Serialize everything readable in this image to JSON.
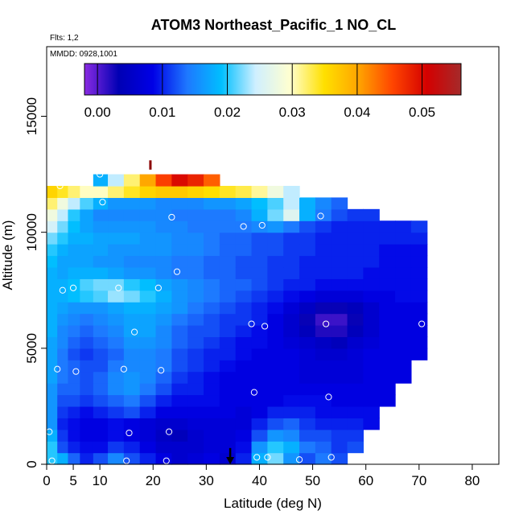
{
  "chart_data": {
    "type": "heatmap",
    "title": "ATOM3 Northeast_Pacific_1 NO_CL",
    "subtitle_flights": "Flts: 1,2",
    "subtitle_dates": "MMDD: 0928,1001",
    "xlabel": "Latitude (deg N)",
    "ylabel": "Altitude (m)",
    "xlim": [
      0,
      85
    ],
    "ylim": [
      0,
      18000
    ],
    "x_ticks": [
      "0",
      "5",
      "10",
      "20",
      "30",
      "40",
      "50",
      "60",
      "70",
      "80"
    ],
    "x_tick_values": [
      0,
      5,
      10,
      20,
      30,
      40,
      50,
      60,
      70,
      80
    ],
    "y_ticks": [
      "0",
      "5000",
      "10000",
      "15000"
    ],
    "y_tick_values": [
      0,
      5000,
      10000,
      15000
    ],
    "colorbar": {
      "range": [
        -0.002,
        0.056
      ],
      "tick_labels": [
        "0.00",
        "0.01",
        "0.02",
        "0.03",
        "0.04",
        "0.05"
      ],
      "tick_values": [
        0.0,
        0.01,
        0.02,
        0.03,
        0.04,
        0.05
      ],
      "colors": [
        "#8a2be2",
        "#0000b4",
        "#0000e6",
        "#1e78ff",
        "#00bfff",
        "#cfefff",
        "#ffffd0",
        "#ffe000",
        "#ffa500",
        "#ff4500",
        "#d40000",
        "#a52a2a"
      ]
    },
    "field": {
      "lat_centers": [
        1,
        3,
        5,
        7.5,
        10,
        13,
        16,
        19,
        22,
        25,
        28,
        31,
        34,
        37,
        40,
        43,
        46,
        49,
        52,
        55,
        58,
        61,
        64,
        67,
        70
      ],
      "alt_centers": [
        250,
        750,
        1250,
        1750,
        2250,
        2750,
        3250,
        3750,
        4250,
        4750,
        5250,
        5750,
        6250,
        6750,
        7250,
        7750,
        8250,
        8750,
        9250,
        9750,
        10250,
        10750,
        11250,
        11750,
        12250
      ],
      "values": [
        [
          0.02,
          0.018,
          0.013,
          0.01,
          0.012,
          0.015,
          0.012,
          0.01,
          0.008,
          0.006,
          0.007,
          0.008,
          0.006,
          0.01,
          0.018,
          0.022,
          0.016,
          0.012,
          0.014,
          0.012,
          null,
          null,
          null,
          null,
          null
        ],
        [
          0.02,
          0.012,
          0.01,
          0.009,
          0.009,
          0.011,
          0.01,
          0.008,
          0.006,
          0.006,
          0.006,
          0.007,
          0.007,
          0.009,
          0.016,
          0.02,
          0.018,
          0.014,
          0.013,
          0.011,
          0.012,
          null,
          null,
          null,
          null
        ],
        [
          0.018,
          0.011,
          0.009,
          0.008,
          0.008,
          0.009,
          0.008,
          0.007,
          0.005,
          0.004,
          0.006,
          0.007,
          0.007,
          0.008,
          0.012,
          0.016,
          0.015,
          0.012,
          0.012,
          0.011,
          0.011,
          null,
          null,
          null,
          null
        ],
        [
          0.016,
          0.01,
          0.009,
          0.008,
          0.008,
          0.009,
          0.008,
          0.007,
          0.006,
          0.006,
          0.007,
          0.007,
          0.007,
          0.007,
          0.01,
          0.012,
          0.013,
          0.011,
          0.01,
          0.01,
          0.01,
          0.009,
          null,
          null,
          null
        ],
        [
          0.016,
          0.011,
          0.01,
          0.009,
          0.01,
          0.011,
          0.012,
          0.01,
          0.008,
          0.008,
          0.008,
          0.008,
          0.008,
          0.007,
          0.008,
          0.01,
          0.01,
          0.01,
          0.009,
          0.009,
          0.009,
          0.009,
          null,
          null,
          null
        ],
        [
          0.016,
          0.012,
          0.012,
          0.011,
          0.012,
          0.013,
          0.014,
          0.012,
          0.01,
          0.009,
          0.009,
          0.009,
          0.008,
          0.008,
          0.008,
          0.008,
          0.009,
          0.009,
          0.009,
          0.008,
          0.008,
          0.008,
          0.008,
          null,
          null
        ],
        [
          0.016,
          0.013,
          0.013,
          0.012,
          0.013,
          0.015,
          0.016,
          0.014,
          0.012,
          0.01,
          0.01,
          0.009,
          0.008,
          0.008,
          0.008,
          0.008,
          0.008,
          0.008,
          0.008,
          0.008,
          0.008,
          0.008,
          0.008,
          null,
          null
        ],
        [
          0.017,
          0.014,
          0.013,
          0.012,
          0.013,
          0.015,
          0.016,
          0.015,
          0.013,
          0.011,
          0.01,
          0.009,
          0.008,
          0.008,
          0.008,
          0.008,
          0.008,
          0.007,
          0.007,
          0.007,
          0.007,
          0.008,
          0.008,
          0.008,
          null
        ],
        [
          0.017,
          0.014,
          0.013,
          0.012,
          0.012,
          0.014,
          0.015,
          0.015,
          0.014,
          0.012,
          0.011,
          0.01,
          0.009,
          0.008,
          0.008,
          0.008,
          0.008,
          0.007,
          0.007,
          0.007,
          0.007,
          0.008,
          0.008,
          0.008,
          null
        ],
        [
          0.017,
          0.014,
          0.012,
          0.011,
          0.012,
          0.013,
          0.015,
          0.015,
          0.014,
          0.012,
          0.011,
          0.01,
          0.01,
          0.009,
          0.008,
          0.008,
          0.008,
          0.007,
          0.006,
          0.006,
          0.007,
          0.008,
          0.008,
          0.008,
          0.008
        ],
        [
          0.017,
          0.015,
          0.013,
          0.012,
          0.013,
          0.014,
          0.016,
          0.016,
          0.015,
          0.013,
          0.012,
          0.011,
          0.01,
          0.009,
          0.009,
          0.008,
          0.007,
          0.006,
          0.005,
          0.004,
          0.006,
          0.007,
          0.008,
          0.008,
          0.008
        ],
        [
          0.018,
          0.015,
          0.014,
          0.013,
          0.014,
          0.015,
          0.017,
          0.017,
          0.015,
          0.013,
          0.012,
          0.012,
          0.011,
          0.01,
          0.009,
          0.008,
          0.006,
          0.004,
          0.002,
          0.002,
          0.004,
          0.006,
          0.008,
          0.008,
          0.008
        ],
        [
          0.018,
          0.016,
          0.015,
          0.014,
          0.015,
          0.016,
          0.017,
          0.017,
          0.016,
          0.014,
          0.013,
          0.012,
          0.011,
          0.011,
          0.01,
          0.008,
          0.006,
          0.003,
          0.001,
          0.001,
          0.003,
          0.006,
          0.008,
          0.008,
          0.008
        ],
        [
          0.018,
          0.017,
          0.016,
          0.016,
          0.016,
          0.017,
          0.018,
          0.018,
          0.017,
          0.016,
          0.014,
          0.013,
          0.012,
          0.011,
          0.01,
          0.009,
          0.007,
          0.005,
          0.003,
          0.003,
          0.004,
          0.006,
          0.008,
          0.008,
          0.008
        ],
        [
          0.018,
          0.018,
          0.019,
          0.02,
          0.021,
          0.023,
          0.022,
          0.02,
          0.018,
          0.016,
          0.015,
          0.014,
          0.013,
          0.012,
          0.011,
          0.01,
          0.009,
          0.008,
          0.007,
          0.007,
          0.007,
          0.008,
          0.008,
          0.009,
          0.009
        ],
        [
          0.018,
          0.018,
          0.019,
          0.021,
          0.022,
          0.022,
          0.02,
          0.019,
          0.017,
          0.016,
          0.015,
          0.014,
          0.013,
          0.013,
          0.012,
          0.011,
          0.01,
          0.01,
          0.009,
          0.009,
          0.009,
          0.009,
          0.009,
          0.009,
          0.009
        ],
        [
          0.018,
          0.017,
          0.018,
          0.018,
          0.018,
          0.017,
          0.016,
          0.016,
          0.015,
          0.014,
          0.014,
          0.013,
          0.013,
          0.012,
          0.012,
          0.011,
          0.011,
          0.01,
          0.01,
          0.01,
          0.01,
          0.009,
          0.009,
          0.009,
          0.009
        ],
        [
          0.019,
          0.017,
          0.017,
          0.017,
          0.016,
          0.016,
          0.015,
          0.015,
          0.015,
          0.014,
          0.014,
          0.013,
          0.013,
          0.012,
          0.012,
          0.011,
          0.011,
          0.01,
          0.01,
          0.01,
          0.01,
          0.01,
          0.009,
          0.009,
          0.009
        ],
        [
          0.02,
          0.018,
          0.017,
          0.017,
          0.017,
          0.016,
          0.016,
          0.016,
          0.016,
          0.015,
          0.015,
          0.014,
          0.013,
          0.013,
          0.012,
          0.012,
          0.011,
          0.011,
          0.01,
          0.01,
          0.01,
          0.01,
          0.009,
          0.009,
          0.009
        ],
        [
          0.022,
          0.02,
          0.018,
          0.018,
          0.017,
          0.017,
          0.017,
          0.016,
          0.016,
          0.015,
          0.015,
          0.014,
          0.013,
          0.013,
          0.012,
          0.012,
          0.011,
          0.011,
          0.01,
          0.01,
          0.01,
          0.01,
          0.01,
          0.01,
          0.01
        ],
        [
          0.025,
          0.022,
          0.019,
          0.017,
          0.016,
          0.016,
          0.016,
          0.016,
          0.015,
          0.015,
          0.014,
          0.014,
          0.014,
          0.014,
          0.015,
          0.016,
          0.014,
          0.012,
          0.011,
          0.01,
          0.01,
          0.01,
          0.01,
          0.01,
          0.011
        ],
        [
          0.028,
          0.024,
          0.02,
          0.017,
          0.015,
          0.015,
          0.015,
          0.015,
          0.015,
          0.014,
          0.014,
          0.014,
          0.014,
          0.015,
          0.018,
          0.022,
          0.026,
          0.018,
          0.014,
          0.012,
          0.011,
          0.011,
          null,
          null,
          null
        ],
        [
          0.032,
          0.028,
          0.024,
          0.021,
          0.018,
          0.016,
          0.016,
          0.016,
          0.015,
          0.015,
          0.015,
          0.016,
          0.016,
          0.017,
          0.019,
          0.021,
          0.024,
          0.018,
          0.015,
          0.013,
          null,
          null,
          null,
          null,
          null
        ],
        [
          0.036,
          0.034,
          0.032,
          0.03,
          0.03,
          0.032,
          0.034,
          0.036,
          0.037,
          0.037,
          0.036,
          0.035,
          0.034,
          0.033,
          0.031,
          0.028,
          0.024,
          null,
          null,
          null,
          null,
          null,
          null,
          null,
          null
        ],
        [
          null,
          null,
          null,
          null,
          0.018,
          0.024,
          0.032,
          0.04,
          0.046,
          0.05,
          0.048,
          0.044,
          null,
          null,
          null,
          null,
          null,
          null,
          null,
          null,
          null,
          null,
          null,
          null,
          null
        ]
      ]
    },
    "samples": [
      {
        "lat": 0.5,
        "alt": 1400
      },
      {
        "lat": 1,
        "alt": 150
      },
      {
        "lat": 2,
        "alt": 4100
      },
      {
        "lat": 2.5,
        "alt": 12000
      },
      {
        "lat": 3,
        "alt": 7500
      },
      {
        "lat": 5,
        "alt": 7600
      },
      {
        "lat": 5.5,
        "alt": 4000
      },
      {
        "lat": 10,
        "alt": 12500
      },
      {
        "lat": 10.5,
        "alt": 11300
      },
      {
        "lat": 13.5,
        "alt": 7600
      },
      {
        "lat": 14.5,
        "alt": 4100
      },
      {
        "lat": 15,
        "alt": 150
      },
      {
        "lat": 15.5,
        "alt": 1350
      },
      {
        "lat": 16.5,
        "alt": 5700
      },
      {
        "lat": 21,
        "alt": 7600
      },
      {
        "lat": 21.5,
        "alt": 4050
      },
      {
        "lat": 22.5,
        "alt": 150
      },
      {
        "lat": 23,
        "alt": 1400
      },
      {
        "lat": 23.5,
        "alt": 10650
      },
      {
        "lat": 24.5,
        "alt": 8300
      },
      {
        "lat": 37,
        "alt": 10250
      },
      {
        "lat": 38.5,
        "alt": 6050
      },
      {
        "lat": 39,
        "alt": 3100
      },
      {
        "lat": 39.5,
        "alt": 300
      },
      {
        "lat": 40.5,
        "alt": 10300
      },
      {
        "lat": 41,
        "alt": 5950
      },
      {
        "lat": 41.5,
        "alt": 300
      },
      {
        "lat": 47.5,
        "alt": 200
      },
      {
        "lat": 51.5,
        "alt": 10700
      },
      {
        "lat": 52.5,
        "alt": 6050
      },
      {
        "lat": 53,
        "alt": 2900
      },
      {
        "lat": 53.5,
        "alt": 300
      },
      {
        "lat": 58.5,
        "alt": 11200
      },
      {
        "lat": 68.5,
        "alt": 10900
      },
      {
        "lat": 70.5,
        "alt": 6050
      }
    ],
    "markers": [
      {
        "type": "arrow-down",
        "lat": 34.5,
        "alt_from": 700,
        "alt_to": 0,
        "color": "#000000"
      },
      {
        "type": "tick",
        "lat": 19.5,
        "alt_from": 12700,
        "alt_to": 13100,
        "color": "#8b0000"
      }
    ]
  }
}
